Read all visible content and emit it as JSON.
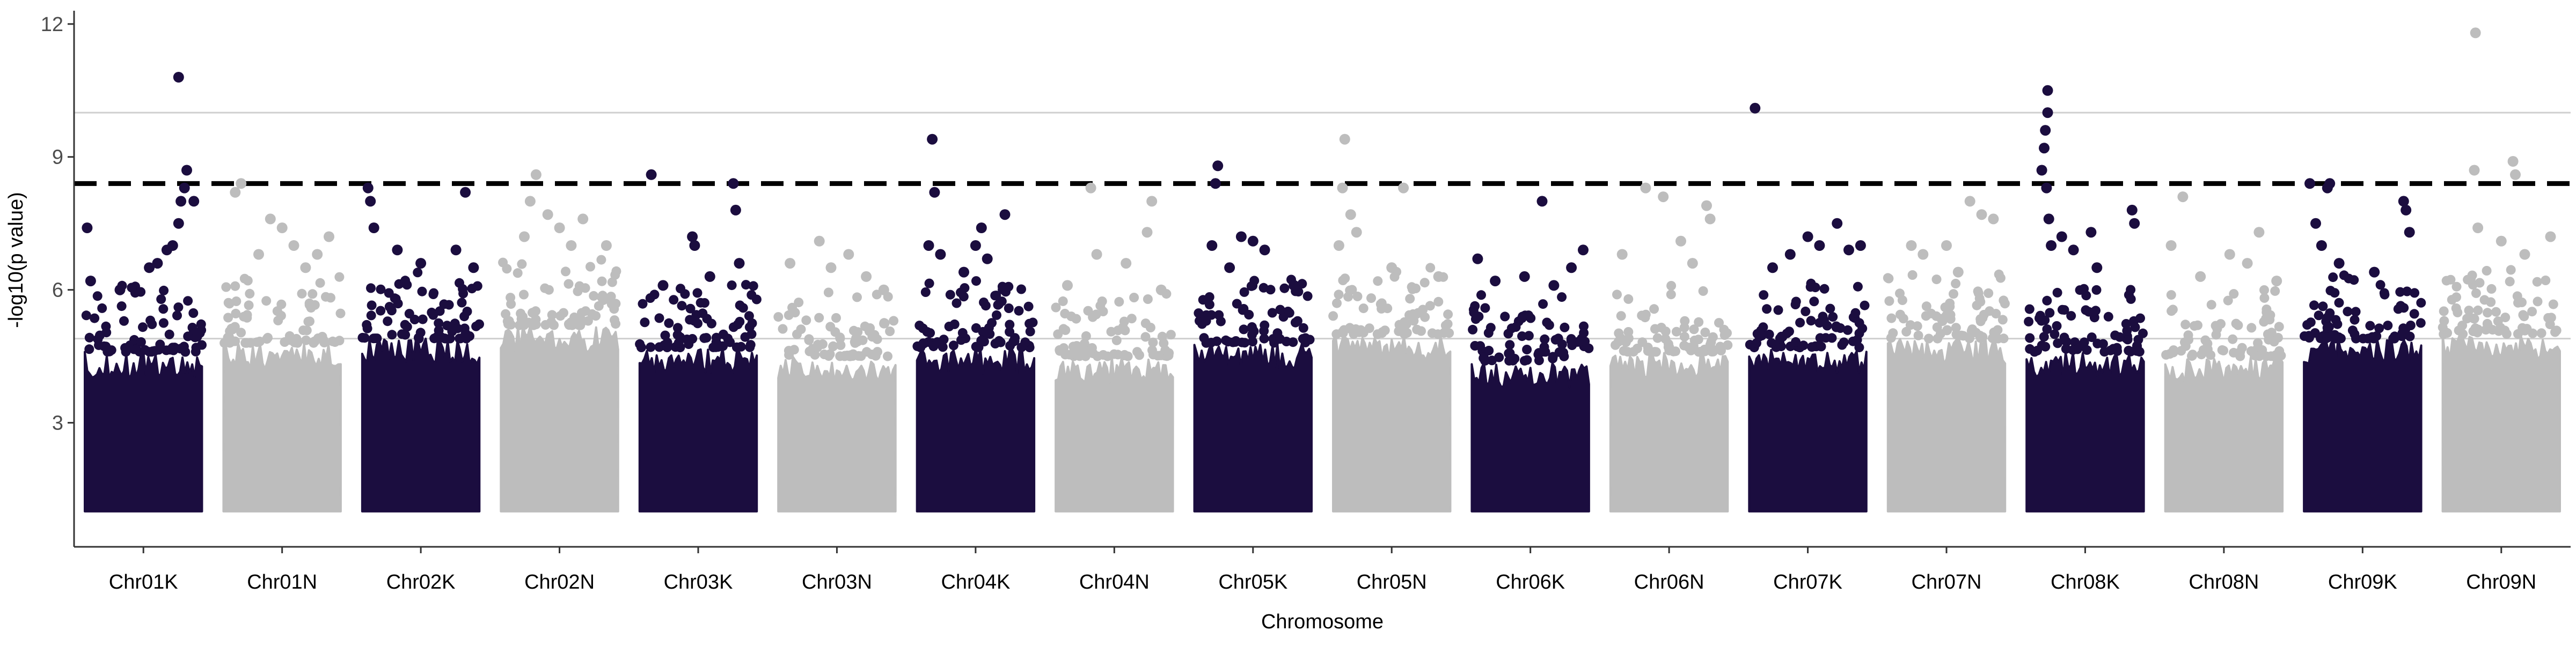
{
  "chart_data": {
    "type": "scatter",
    "subtype": "manhattan",
    "xlabel": "Chromosome",
    "ylabel": "-log10(p value)",
    "ylim": [
      0.2,
      12.3
    ],
    "yticks": [
      3,
      6,
      9,
      12
    ],
    "grid": false,
    "legend": "none",
    "colors": {
      "odd": "#1b0d3f",
      "even": "#bdbdbd"
    },
    "thresholds": [
      {
        "value": 10.0,
        "style": "solid",
        "color": "#cfcfcf"
      },
      {
        "value": 8.4,
        "style": "dashed",
        "color": "#000000"
      },
      {
        "value": 4.9,
        "style": "solid",
        "color": "#cfcfcf"
      }
    ],
    "categories": [
      "Chr01K",
      "Chr01N",
      "Chr02K",
      "Chr02N",
      "Chr03K",
      "Chr03N",
      "Chr04K",
      "Chr04N",
      "Chr05K",
      "Chr05N",
      "Chr06K",
      "Chr06N",
      "Chr07K",
      "Chr07N",
      "Chr08K",
      "Chr08N",
      "Chr09K",
      "Chr09N"
    ],
    "series": [
      {
        "category": "Chr01K",
        "fill_top": 4.6,
        "peak_p": 6.1,
        "points": [
          [
            0.02,
            7.4
          ],
          [
            0.05,
            6.2
          ],
          [
            0.3,
            6.0
          ],
          [
            0.55,
            6.5
          ],
          [
            0.62,
            6.6
          ],
          [
            0.7,
            6.9
          ],
          [
            0.75,
            7.0
          ],
          [
            0.8,
            7.5
          ],
          [
            0.82,
            8.0
          ],
          [
            0.85,
            8.3
          ],
          [
            0.87,
            8.7
          ],
          [
            0.93,
            8.0
          ],
          [
            0.8,
            10.8
          ]
        ]
      },
      {
        "category": "Chr01N",
        "fill_top": 4.8,
        "peak_p": 0.55,
        "points": [
          [
            0.1,
            8.2
          ],
          [
            0.15,
            8.4
          ],
          [
            0.4,
            7.6
          ],
          [
            0.5,
            7.4
          ],
          [
            0.6,
            7.0
          ],
          [
            0.8,
            6.8
          ],
          [
            0.9,
            7.2
          ],
          [
            0.3,
            6.8
          ],
          [
            0.7,
            6.5
          ]
        ]
      },
      {
        "category": "Chr02K",
        "fill_top": 4.9,
        "peak_p": 0.8,
        "points": [
          [
            0.05,
            8.3
          ],
          [
            0.07,
            8.0
          ],
          [
            0.1,
            7.4
          ],
          [
            0.3,
            6.9
          ],
          [
            0.5,
            6.6
          ],
          [
            0.8,
            6.9
          ],
          [
            0.88,
            8.2
          ],
          [
            0.95,
            6.5
          ]
        ]
      },
      {
        "category": "Chr02N",
        "fill_top": 5.2,
        "peak_p": 0.3,
        "points": [
          [
            0.3,
            8.6
          ],
          [
            0.25,
            8.0
          ],
          [
            0.4,
            7.7
          ],
          [
            0.5,
            7.4
          ],
          [
            0.2,
            7.2
          ],
          [
            0.6,
            7.0
          ],
          [
            0.7,
            7.6
          ],
          [
            0.9,
            7.0
          ]
        ]
      },
      {
        "category": "Chr03K",
        "fill_top": 4.7,
        "peak_p": 0.85,
        "points": [
          [
            0.1,
            8.6
          ],
          [
            0.45,
            7.2
          ],
          [
            0.47,
            7.0
          ],
          [
            0.8,
            8.4
          ],
          [
            0.82,
            7.8
          ],
          [
            0.85,
            6.6
          ],
          [
            0.6,
            6.3
          ],
          [
            0.2,
            6.1
          ]
        ]
      },
      {
        "category": "Chr03N",
        "fill_top": 4.5,
        "peak_p": 0.5,
        "points": [
          [
            0.1,
            6.6
          ],
          [
            0.35,
            7.1
          ],
          [
            0.45,
            6.5
          ],
          [
            0.6,
            6.8
          ],
          [
            0.75,
            6.3
          ],
          [
            0.9,
            6.0
          ]
        ]
      },
      {
        "category": "Chr04K",
        "fill_top": 4.7,
        "peak_p": 0.2,
        "points": [
          [
            0.13,
            9.4
          ],
          [
            0.15,
            8.2
          ],
          [
            0.1,
            7.0
          ],
          [
            0.2,
            6.8
          ],
          [
            0.5,
            7.0
          ],
          [
            0.55,
            7.4
          ],
          [
            0.75,
            7.7
          ],
          [
            0.6,
            6.7
          ],
          [
            0.4,
            6.4
          ]
        ]
      },
      {
        "category": "Chr04N",
        "fill_top": 4.5,
        "peak_p": 0.6,
        "points": [
          [
            0.3,
            8.3
          ],
          [
            0.35,
            6.8
          ],
          [
            0.1,
            6.1
          ],
          [
            0.6,
            6.6
          ],
          [
            0.78,
            7.3
          ],
          [
            0.82,
            8.0
          ],
          [
            0.9,
            6.0
          ]
        ]
      },
      {
        "category": "Chr05K",
        "fill_top": 4.8,
        "peak_p": 0.2,
        "points": [
          [
            0.2,
            8.8
          ],
          [
            0.18,
            8.4
          ],
          [
            0.15,
            7.0
          ],
          [
            0.4,
            7.2
          ],
          [
            0.5,
            7.1
          ],
          [
            0.6,
            6.9
          ],
          [
            0.3,
            6.5
          ],
          [
            0.85,
            6.1
          ]
        ]
      },
      {
        "category": "Chr05N",
        "fill_top": 5.0,
        "peak_p": 0.12,
        "points": [
          [
            0.1,
            9.4
          ],
          [
            0.08,
            8.3
          ],
          [
            0.15,
            7.7
          ],
          [
            0.2,
            7.3
          ],
          [
            0.05,
            7.0
          ],
          [
            0.5,
            6.5
          ],
          [
            0.6,
            8.3
          ],
          [
            0.9,
            6.3
          ]
        ]
      },
      {
        "category": "Chr06K",
        "fill_top": 4.4,
        "peak_p": 0.3,
        "points": [
          [
            0.6,
            8.0
          ],
          [
            0.05,
            6.7
          ],
          [
            0.2,
            6.2
          ],
          [
            0.45,
            6.3
          ],
          [
            0.7,
            6.1
          ],
          [
            0.85,
            6.5
          ],
          [
            0.95,
            6.9
          ]
        ]
      },
      {
        "category": "Chr06N",
        "fill_top": 4.6,
        "peak_p": 0.7,
        "points": [
          [
            0.3,
            8.3
          ],
          [
            0.45,
            8.1
          ],
          [
            0.82,
            7.9
          ],
          [
            0.85,
            7.6
          ],
          [
            0.1,
            6.8
          ],
          [
            0.6,
            7.1
          ],
          [
            0.7,
            6.6
          ]
        ]
      },
      {
        "category": "Chr07K",
        "fill_top": 4.7,
        "peak_p": 0.6,
        "points": [
          [
            0.05,
            10.1
          ],
          [
            0.2,
            6.5
          ],
          [
            0.35,
            6.8
          ],
          [
            0.5,
            7.2
          ],
          [
            0.6,
            7.0
          ],
          [
            0.75,
            7.5
          ],
          [
            0.85,
            6.9
          ],
          [
            0.95,
            7.0
          ]
        ]
      },
      {
        "category": "Chr07N",
        "fill_top": 4.9,
        "peak_p": 0.5,
        "points": [
          [
            0.2,
            7.0
          ],
          [
            0.3,
            6.8
          ],
          [
            0.5,
            7.0
          ],
          [
            0.7,
            8.0
          ],
          [
            0.8,
            7.7
          ],
          [
            0.9,
            7.6
          ],
          [
            0.6,
            6.4
          ]
        ]
      },
      {
        "category": "Chr08K",
        "fill_top": 4.6,
        "peak_p": 0.15,
        "points": [
          [
            0.18,
            10.5
          ],
          [
            0.18,
            10.0
          ],
          [
            0.16,
            9.6
          ],
          [
            0.15,
            9.2
          ],
          [
            0.13,
            8.7
          ],
          [
            0.17,
            8.3
          ],
          [
            0.19,
            7.6
          ],
          [
            0.21,
            7.0
          ],
          [
            0.3,
            7.2
          ],
          [
            0.4,
            6.9
          ],
          [
            0.55,
            7.3
          ],
          [
            0.6,
            6.5
          ],
          [
            0.9,
            7.8
          ],
          [
            0.92,
            7.5
          ]
        ]
      },
      {
        "category": "Chr08N",
        "fill_top": 4.5,
        "peak_p": 0.5,
        "points": [
          [
            0.15,
            8.1
          ],
          [
            0.05,
            7.0
          ],
          [
            0.3,
            6.3
          ],
          [
            0.55,
            6.8
          ],
          [
            0.7,
            6.6
          ],
          [
            0.8,
            7.3
          ],
          [
            0.95,
            6.2
          ]
        ]
      },
      {
        "category": "Chr09K",
        "fill_top": 4.9,
        "peak_p": 0.15,
        "points": [
          [
            0.05,
            8.4
          ],
          [
            0.2,
            8.3
          ],
          [
            0.22,
            8.4
          ],
          [
            0.1,
            7.5
          ],
          [
            0.15,
            7.0
          ],
          [
            0.3,
            6.6
          ],
          [
            0.6,
            6.4
          ],
          [
            0.85,
            8.0
          ],
          [
            0.87,
            7.8
          ],
          [
            0.9,
            7.3
          ]
        ]
      },
      {
        "category": "Chr09N",
        "fill_top": 5.0,
        "peak_p": 0.35,
        "points": [
          [
            0.28,
            11.8
          ],
          [
            0.27,
            8.7
          ],
          [
            0.6,
            8.9
          ],
          [
            0.62,
            8.6
          ],
          [
            0.3,
            7.4
          ],
          [
            0.5,
            7.1
          ],
          [
            0.7,
            6.8
          ],
          [
            0.92,
            7.2
          ]
        ]
      }
    ]
  }
}
